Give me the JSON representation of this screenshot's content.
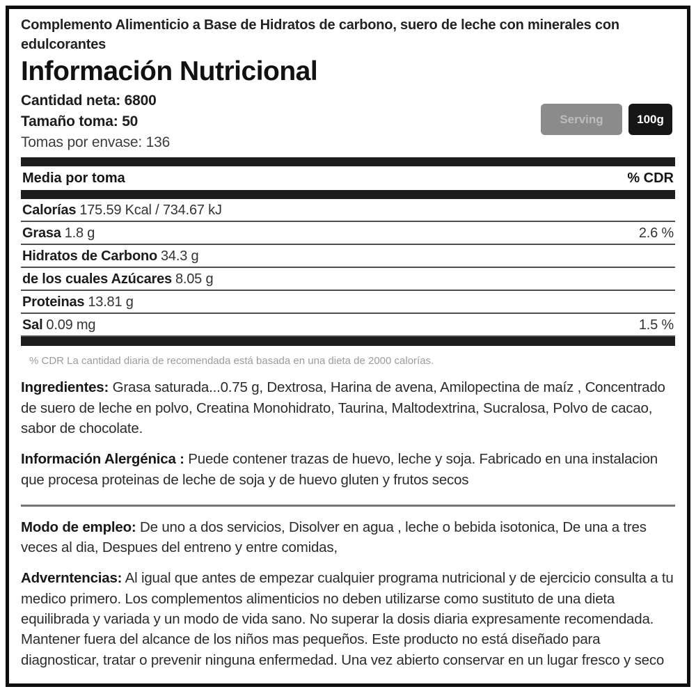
{
  "header": {
    "description": "Complemento Alimenticio a Base de Hidratos de carbono, suero de leche con minerales con edulcorantes",
    "title": "Información Nutricional"
  },
  "summary": {
    "net_quantity": "Cantidad neta: 6800",
    "serving_size": "Tamaño toma: 50",
    "servings_per_container": "Tomas por envase: 136"
  },
  "toggle": {
    "serving_label": "Serving",
    "per_100g_label": "100g",
    "serving_bg": "#8b8b8b",
    "per_100g_bg": "#161616"
  },
  "table": {
    "header_left": "Media por toma",
    "header_right": "% CDR",
    "rows": [
      {
        "name": "Calorías",
        "amount": "175.59 Kcal / 734.67 kJ",
        "cdr": ""
      },
      {
        "name": "Grasa",
        "amount": "1.8 g",
        "cdr": "2.6 %"
      },
      {
        "name": "Hidratos de Carbono",
        "amount": "34.3 g",
        "cdr": ""
      },
      {
        "name": "de los cuales Azúcares",
        "amount": "8.05 g",
        "cdr": ""
      },
      {
        "name": "Proteinas",
        "amount": "13.81 g",
        "cdr": ""
      },
      {
        "name": "Sal",
        "amount": "0.09 mg",
        "cdr": "1.5 %"
      }
    ],
    "footnote": "% CDR La cantidad diaria de recomendada está basada en una dieta de 2000 calorías."
  },
  "sections": [
    {
      "lead": "Ingredientes:",
      "text": " Grasa saturada...0.75 g, Dextrosa, Harina de avena, Amilopectina de maíz , Concentrado de suero de leche en polvo, Creatina Monohidrato, Taurina, Maltodextrina, Sucralosa, Polvo de cacao, sabor de chocolate."
    },
    {
      "lead": "Información Alergénica :",
      "text": " Puede contener trazas de huevo, leche y soja. Fabricado en una instalacion que procesa proteinas de leche de soja y de huevo gluten y frutos secos"
    },
    {
      "lead": "Modo de empleo:",
      "text": " De uno a dos servicios, Disolver en agua , leche o bebida isotonica, De una a tres veces al dia, Despues del entreno y entre comidas,"
    },
    {
      "lead": "Adverntencias:",
      "text": " Al igual que antes de empezar cualquier programa nutricional y de ejercicio consulta a tu medico primero. Los complementos alimenticios no deben utilizarse como sustituto de una dieta equilibrada y variada y un modo de vida sano. No superar la dosis diaria expresamente recomendada. Mantener fuera del alcance de los niños mas pequeños. Este producto no está diseñado para diagnosticar, tratar o prevenir ninguna enfermedad. Una vez abierto conservar en un lugar fresco y seco"
    }
  ]
}
